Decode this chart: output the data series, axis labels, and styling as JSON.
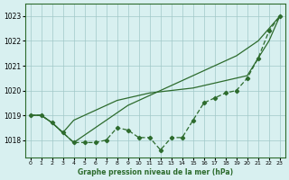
{
  "xlabel": "Graphe pression niveau de la mer (hPa)",
  "background_color": "#d8f0f0",
  "grid_color": "#a0c8c8",
  "line_color": "#2d6b2d",
  "x_ticks": [
    0,
    1,
    2,
    3,
    4,
    5,
    6,
    7,
    8,
    9,
    10,
    11,
    12,
    13,
    14,
    15,
    16,
    17,
    18,
    19,
    20,
    21,
    22,
    23
  ],
  "y_ticks": [
    1018,
    1019,
    1020,
    1021,
    1022,
    1023
  ],
  "ylim": [
    1017.3,
    1023.5
  ],
  "xlim": [
    -0.5,
    23.5
  ],
  "main_data": [
    1019.0,
    1019.0,
    1018.7,
    1018.3,
    1017.9,
    1017.9,
    1017.9,
    1018.0,
    1018.5,
    1018.4,
    1018.1,
    1018.1,
    1017.6,
    1018.1,
    1018.1,
    1018.8,
    1019.5,
    1019.7,
    1019.9,
    1020.0,
    1020.5,
    1021.3,
    1022.4,
    1023.0
  ],
  "line1_data": [
    1019.0,
    1019.0,
    1018.7,
    1018.3,
    1017.9,
    1018.2,
    1018.5,
    1018.8,
    1019.1,
    1019.4,
    1019.6,
    1019.8,
    1020.0,
    1020.2,
    1020.4,
    1020.6,
    1020.8,
    1021.0,
    1021.2,
    1021.4,
    1021.7,
    1022.0,
    1022.5,
    1023.0
  ],
  "line2_data": [
    1019.0,
    1019.0,
    1018.7,
    1018.3,
    1018.8,
    1019.0,
    1019.2,
    1019.4,
    1019.6,
    1019.7,
    1019.8,
    1019.9,
    1019.95,
    1020.0,
    1020.05,
    1020.1,
    1020.2,
    1020.3,
    1020.4,
    1020.5,
    1020.6,
    1021.3,
    1022.0,
    1023.0
  ]
}
